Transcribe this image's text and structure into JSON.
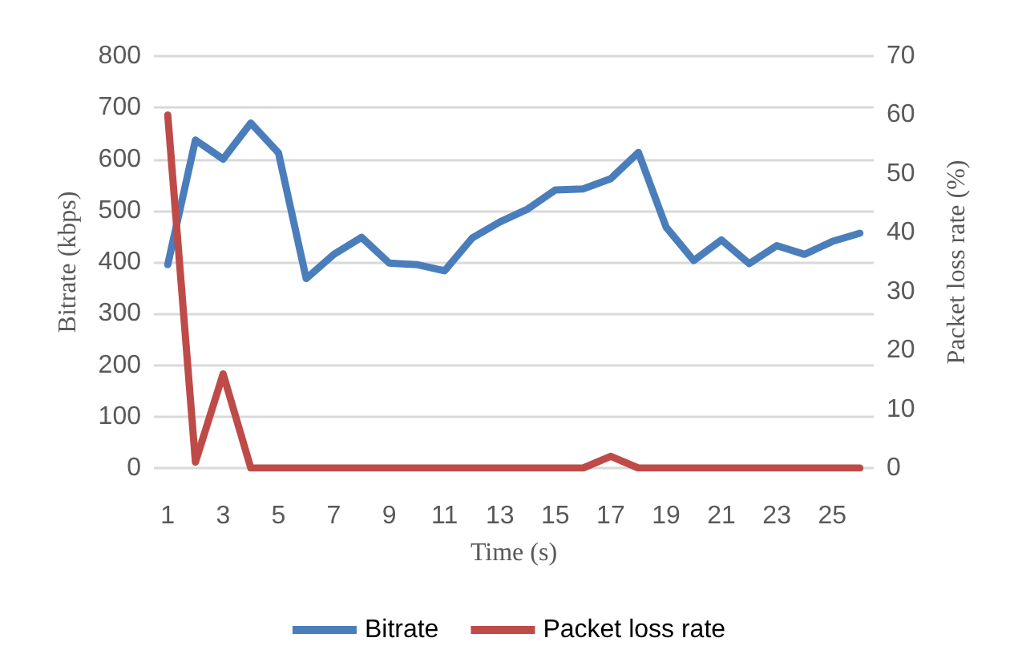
{
  "chart_data": {
    "type": "line",
    "xlabel": "Time (s)",
    "ylabel": "Bitrate (kbps)",
    "y2label": "Packet loss rate (%)",
    "x": [
      1,
      2,
      3,
      4,
      5,
      6,
      7,
      8,
      9,
      10,
      11,
      12,
      13,
      14,
      15,
      16,
      17,
      18,
      19,
      20,
      21,
      22,
      23,
      24,
      25,
      26
    ],
    "xlim": [
      0.5,
      26.5
    ],
    "xticks": [
      1,
      3,
      5,
      7,
      9,
      11,
      13,
      15,
      17,
      19,
      21,
      23,
      25
    ],
    "series": [
      {
        "name": "Bitrate",
        "color": "#4a7ebb",
        "values": [
          395,
          637,
          600,
          670,
          612,
          368,
          415,
          448,
          398,
          395,
          383,
          447,
          478,
          503,
          540,
          542,
          562,
          613,
          468,
          403,
          443,
          397,
          432,
          415,
          440,
          456
        ]
      },
      {
        "name": "Packet loss rate",
        "color": "#be4b48",
        "axis": "y2",
        "values": [
          60,
          1,
          16,
          0,
          0,
          0,
          0,
          0,
          0,
          0,
          0,
          0,
          0,
          0,
          0,
          0,
          2,
          0,
          0,
          0,
          0,
          0,
          0,
          0,
          0,
          0
        ]
      }
    ],
    "ylim": [
      0,
      800
    ],
    "yticks": [
      0,
      100,
      200,
      300,
      400,
      500,
      600,
      700,
      800
    ],
    "y2lim": [
      0,
      70
    ],
    "y2ticks": [
      0,
      10,
      20,
      30,
      40,
      50,
      60,
      70
    ],
    "grid": "y",
    "legend": "bottom",
    "marker": "none",
    "line_style": "solid"
  }
}
